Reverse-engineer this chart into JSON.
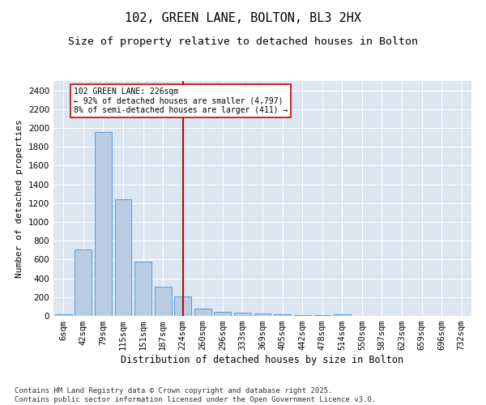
{
  "title": "102, GREEN LANE, BOLTON, BL3 2HX",
  "subtitle": "Size of property relative to detached houses in Bolton",
  "xlabel": "Distribution of detached houses by size in Bolton",
  "ylabel": "Number of detached properties",
  "categories": [
    "6sqm",
    "42sqm",
    "79sqm",
    "115sqm",
    "151sqm",
    "187sqm",
    "224sqm",
    "260sqm",
    "296sqm",
    "333sqm",
    "369sqm",
    "405sqm",
    "442sqm",
    "478sqm",
    "514sqm",
    "550sqm",
    "587sqm",
    "623sqm",
    "659sqm",
    "696sqm",
    "732sqm"
  ],
  "values": [
    15,
    710,
    1960,
    1240,
    580,
    310,
    205,
    80,
    45,
    35,
    30,
    20,
    10,
    5,
    15,
    3,
    2,
    0,
    0,
    0,
    0
  ],
  "bar_color": "#b8cce4",
  "bar_edgecolor": "#5a9bd5",
  "vline_x_index": 6,
  "vline_color": "#cc0000",
  "annotation_text": "102 GREEN LANE: 226sqm\n← 92% of detached houses are smaller (4,797)\n8% of semi-detached houses are larger (411) →",
  "annotation_box_color": "#ffffff",
  "annotation_box_edgecolor": "#cc0000",
  "ylim": [
    0,
    2500
  ],
  "yticks": [
    0,
    200,
    400,
    600,
    800,
    1000,
    1200,
    1400,
    1600,
    1800,
    2000,
    2200,
    2400
  ],
  "background_color": "#dce6f1",
  "footer_text": "Contains HM Land Registry data © Crown copyright and database right 2025.\nContains public sector information licensed under the Open Government Licence v3.0.",
  "title_fontsize": 11,
  "subtitle_fontsize": 9.5,
  "xlabel_fontsize": 8.5,
  "ylabel_fontsize": 8,
  "tick_fontsize": 7.5,
  "footer_fontsize": 6.5
}
